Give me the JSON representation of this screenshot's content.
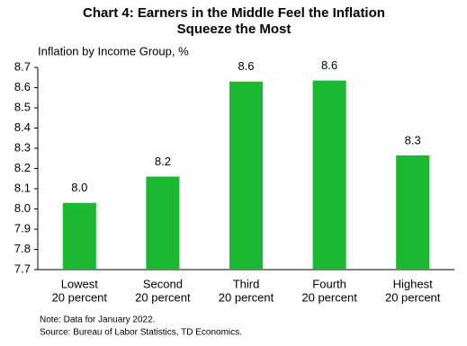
{
  "chart_data": {
    "type": "bar",
    "title": "Chart 4: Earners in the Middle  Feel the Inflation Squeeze the Most",
    "y_label": "Inflation by Income Group, %",
    "categories": [
      [
        "Lowest",
        "20 percent"
      ],
      [
        "Second",
        "20 percent"
      ],
      [
        "Third",
        "20 percent"
      ],
      [
        "Fourth",
        "20 percent"
      ],
      [
        "Highest",
        "20 percent"
      ]
    ],
    "values": [
      8.03,
      8.16,
      8.63,
      8.635,
      8.265
    ],
    "value_labels": [
      "8.0",
      "8.2",
      "8.6",
      "8.6",
      "8.3"
    ],
    "color": "#1db832",
    "ylim": [
      7.7,
      8.7
    ],
    "yticks": [
      7.7,
      7.8,
      7.9,
      {
        "value": 8,
        "label": "8.0"
      },
      8.1,
      8.2,
      8.3,
      8.4,
      8.5,
      8.6,
      8.7
    ],
    "grid": false,
    "notes": [
      "Note:  Data  for January 2022.",
      "Source:  Bureau  of Labor Statistics, TD Economics."
    ]
  }
}
